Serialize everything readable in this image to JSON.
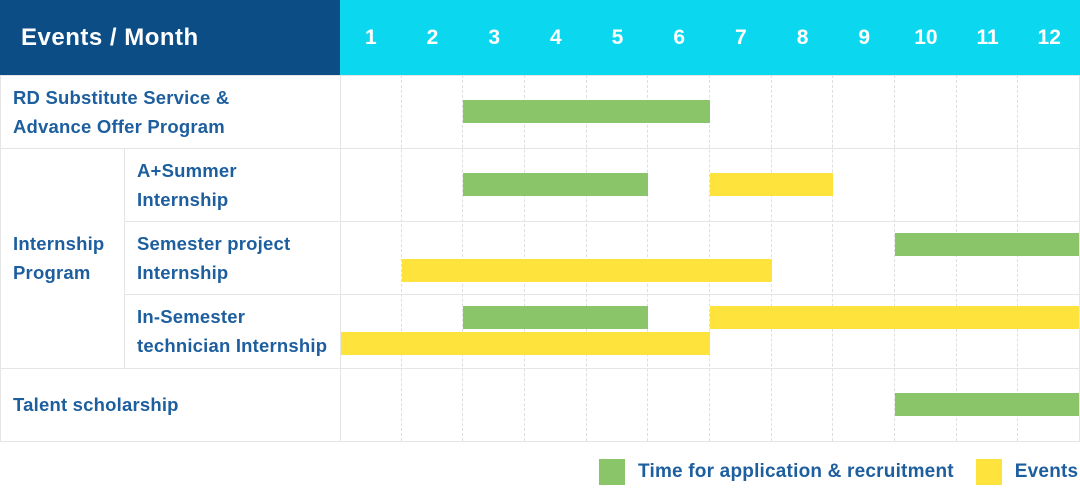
{
  "header": {
    "title": "Events / Month",
    "months": [
      "1",
      "2",
      "3",
      "4",
      "5",
      "6",
      "7",
      "8",
      "9",
      "10",
      "11",
      "12"
    ]
  },
  "colors": {
    "header_navy": "#0d4d86",
    "header_cyan": "#0bd8ee",
    "green": "#8bc56a",
    "yellow": "#ffe33d",
    "label_blue": "#1d5e9e",
    "grid_line": "#e5e5e5"
  },
  "labels": {
    "row0": {
      "line1": "RD Substitute Service &",
      "line2": "Advance Offer Program"
    },
    "group": {
      "line1": "Internship",
      "line2": "Program"
    },
    "sub1": {
      "line1": "A+Summer",
      "line2": "Internship"
    },
    "sub2": {
      "line1": "Semester project",
      "line2": "Internship"
    },
    "sub3": {
      "line1": "In-Semester",
      "line2": "technician Internship"
    },
    "row4": {
      "line1": "Talent scholarship"
    }
  },
  "legend": [
    {
      "color_key": "green",
      "label": "Time for application & recruitment"
    },
    {
      "color_key": "yellow",
      "label": "Events"
    }
  ],
  "chart_data": {
    "type": "bar",
    "variant": "gantt-schedule",
    "title": "Events / Month",
    "x_unit": "month",
    "x_ticks": [
      1,
      2,
      3,
      4,
      5,
      6,
      7,
      8,
      9,
      10,
      11,
      12
    ],
    "x_range": [
      1,
      12
    ],
    "legend": [
      {
        "color_key": "green",
        "meaning": "Time for application & recruitment"
      },
      {
        "color_key": "yellow",
        "meaning": "Events"
      }
    ],
    "rows": [
      {
        "group": null,
        "label": "RD Substitute Service & Advance Offer Program",
        "bars": [
          {
            "kind": "green",
            "meaning": "Time for application & recruitment",
            "start_month": 3,
            "end_month": 6
          }
        ]
      },
      {
        "group": "Internship Program",
        "label": "A+Summer Internship",
        "bars": [
          {
            "kind": "green",
            "meaning": "Time for application & recruitment",
            "start_month": 3,
            "end_month": 5
          },
          {
            "kind": "yellow",
            "meaning": "Events",
            "start_month": 7,
            "end_month": 8
          }
        ]
      },
      {
        "group": "Internship Program",
        "label": "Semester project Internship",
        "bars": [
          {
            "kind": "green",
            "meaning": "Time for application & recruitment",
            "start_month": 10,
            "end_month": 12
          },
          {
            "kind": "yellow",
            "meaning": "Events",
            "start_month": 2,
            "end_month": 7
          }
        ]
      },
      {
        "group": "Internship Program",
        "label": "In-Semester technician Internship",
        "bars": [
          {
            "kind": "green",
            "meaning": "Time for application & recruitment",
            "start_month": 3,
            "end_month": 5
          },
          {
            "kind": "yellow",
            "meaning": "Events",
            "start_month": 7,
            "end_month": 12
          },
          {
            "kind": "yellow",
            "meaning": "Events",
            "start_month": 1,
            "end_month": 6
          }
        ]
      },
      {
        "group": null,
        "label": "Talent scholarship",
        "bars": [
          {
            "kind": "green",
            "meaning": "Time for application & recruitment",
            "start_month": 10,
            "end_month": 12
          }
        ]
      }
    ]
  }
}
